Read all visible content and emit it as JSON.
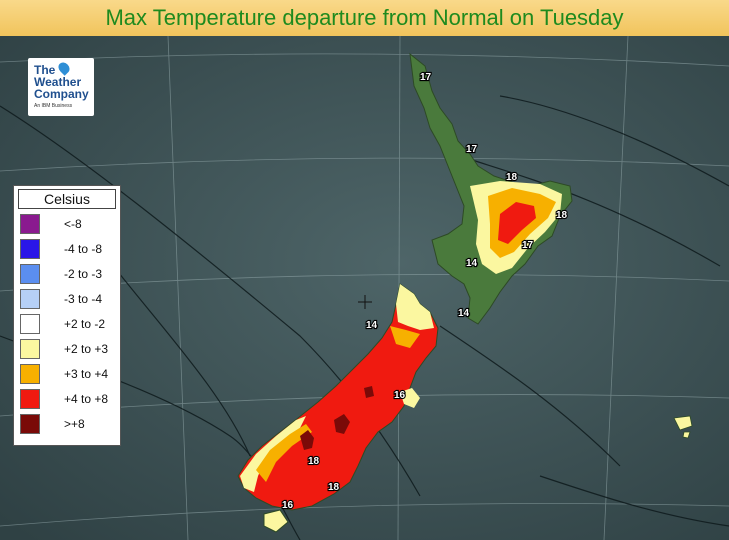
{
  "title": "Max Temperature departure from Normal on Tuesday",
  "logo": {
    "line1": "The",
    "line2": "Weather",
    "line3": "Company",
    "line4": "An IBM Business",
    "drop_color": "#2f8fd6"
  },
  "legend": {
    "heading": "Celsius",
    "items": [
      {
        "label": "<-8",
        "color": "#8a1a8f"
      },
      {
        "label": "-4 to -8",
        "color": "#2a16e8"
      },
      {
        "label": "-2 to -3",
        "color": "#5b8ef0"
      },
      {
        "label": "-3 to -4",
        "color": "#b6d0f6"
      },
      {
        "label": "+2 to -2",
        "color": "#ffffff"
      },
      {
        "label": "+2 to +3",
        "color": "#fbf7a0"
      },
      {
        "label": "+3 to +4",
        "color": "#f7b000"
      },
      {
        "label": "+4 to +8",
        "color": "#f01a10"
      },
      {
        "label": ">+8",
        "color": "#7a0a08"
      }
    ]
  },
  "isotherm_labels": [
    "17",
    "17",
    "18",
    "18",
    "17",
    "14",
    "14",
    "14",
    "16",
    "18",
    "18",
    "16"
  ],
  "colors": {
    "ocean": "#3f5458",
    "land": "#4a7a3c",
    "title_text": "#1e8a1e"
  }
}
